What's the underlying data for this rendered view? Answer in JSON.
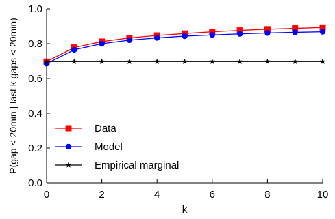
{
  "chart_data": {
    "type": "line",
    "xlabel": "k",
    "ylabel": "P(gap < 20min | last k gaps < 20min)",
    "xlim": [
      0,
      10
    ],
    "ylim": [
      0.0,
      1.0
    ],
    "xticks": [
      "0",
      "2",
      "4",
      "6",
      "8",
      "10"
    ],
    "yticks": [
      "0.0",
      "0.2",
      "0.4",
      "0.6",
      "0.8",
      "1.0"
    ],
    "grid": false,
    "legend_position": "bottom-left",
    "x": [
      0,
      1,
      2,
      3,
      4,
      5,
      6,
      7,
      8,
      9,
      10
    ],
    "series": [
      {
        "name": "Data",
        "color": "#ff0000",
        "marker": "square",
        "values": [
          0.697,
          0.778,
          0.812,
          0.833,
          0.847,
          0.858,
          0.868,
          0.876,
          0.883,
          0.888,
          0.893
        ]
      },
      {
        "name": "Model",
        "color": "#0000ff",
        "marker": "circle",
        "values": [
          0.685,
          0.765,
          0.8,
          0.82,
          0.833,
          0.843,
          0.85,
          0.856,
          0.861,
          0.865,
          0.868
        ]
      },
      {
        "name": "Empirical marginal",
        "color": "#000000",
        "marker": "star",
        "values": [
          0.697,
          0.697,
          0.697,
          0.697,
          0.697,
          0.697,
          0.697,
          0.697,
          0.697,
          0.697,
          0.697
        ]
      }
    ]
  }
}
